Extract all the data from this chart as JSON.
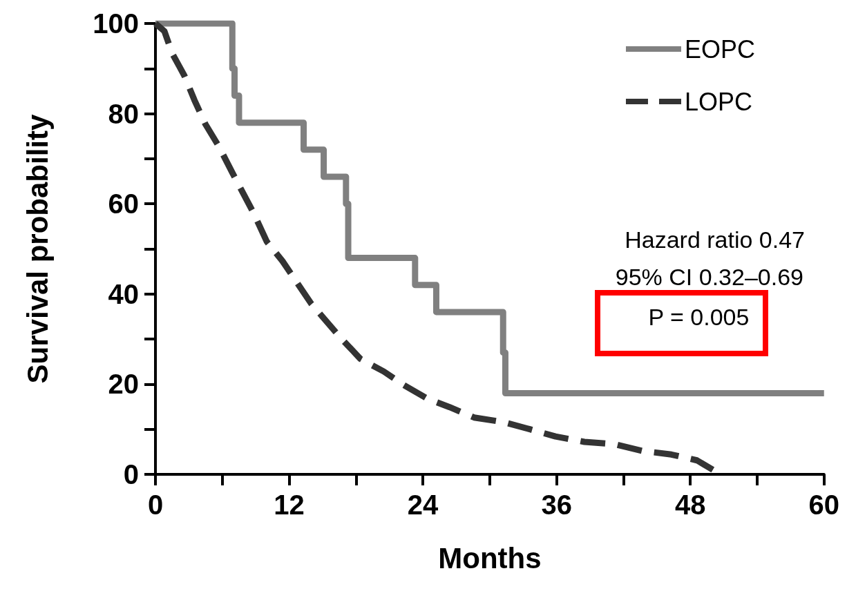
{
  "chart_data": {
    "type": "step",
    "xlabel": "Months",
    "ylabel": "Survival probability",
    "xlim": [
      0,
      60
    ],
    "xticks": [
      0,
      {
        "value": 6,
        "label": null
      },
      12,
      {
        "value": 18,
        "label": null
      },
      24,
      {
        "value": 30,
        "label": null
      },
      36,
      {
        "value": 42,
        "label": null
      },
      48,
      {
        "value": 54,
        "label": null
      },
      60
    ],
    "ylim": [
      0,
      100
    ],
    "yticks": [
      0,
      {
        "value": 10,
        "label": null
      },
      20,
      {
        "value": 30,
        "label": null
      },
      40,
      {
        "value": 50,
        "label": null
      },
      60,
      {
        "value": 70,
        "label": null
      },
      80,
      {
        "value": 90,
        "label": null
      },
      100
    ],
    "grid": false,
    "legend": "top right",
    "marker": "none",
    "series": [
      {
        "name": "EOPC",
        "color": "#808080",
        "line_style": "solid",
        "x": [
          0,
          6.9,
          7.1,
          7.5,
          13.3,
          15.1,
          17.1,
          17.3,
          23.3,
          25.2,
          31.2,
          31.4,
          60
        ],
        "values": [
          100,
          90,
          84,
          78,
          72,
          66,
          60,
          48,
          42,
          36,
          27,
          18,
          18
        ]
      },
      {
        "name": "LOPC",
        "type": "line",
        "color": "#333333",
        "line_style": "dashed",
        "x": [
          0,
          0.8,
          1.5,
          2.6,
          3.5,
          4.5,
          5.7,
          6.9,
          8.8,
          10,
          11.4,
          14,
          16.5,
          18.4,
          20.5,
          22.3,
          24.4,
          26.4,
          28.6,
          31.2,
          33.6,
          35.9,
          38.5,
          41.2,
          43.7,
          46.3,
          48.6,
          50.3,
          50.5
        ],
        "values": [
          100,
          98.3,
          93.4,
          88.4,
          83,
          77.6,
          72.7,
          66.9,
          58,
          51.6,
          47.3,
          37.8,
          30.6,
          25.6,
          22.8,
          19.8,
          16.8,
          14.9,
          12.6,
          11.6,
          10,
          8.4,
          7.2,
          6.7,
          5.2,
          4.4,
          3.1,
          0.6,
          0
        ]
      }
    ],
    "annotations": [
      "Hazard ratio 0.47",
      "95% CI 0.32–0.69",
      "P = 0.005"
    ]
  }
}
